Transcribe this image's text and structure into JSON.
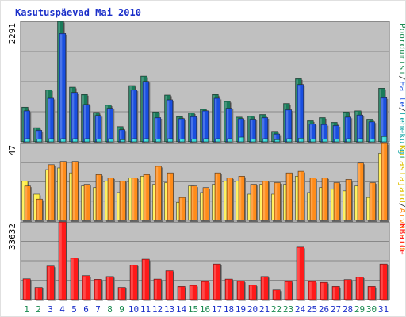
{
  "title": "Kasutuspäevad Mai 2010",
  "colors": {
    "pages": "#1a7b5a",
    "files": "#1a4fe0",
    "visits": "#33d6d6",
    "visitors": "#ffee44",
    "kilobytes_red": "#ff1a1a",
    "sites": "#ff8c1a",
    "panel_bg": "#c0c0c0",
    "grid": "#888888",
    "weekend_label": "#1a8a50",
    "weekday_label": "#1a2fc9"
  },
  "chart_data": [
    {
      "type": "bar",
      "panel": "top",
      "ymax_label": "2291",
      "ylim": [
        0,
        2291
      ],
      "right_labels": [
        {
          "text": "Pöördumisi",
          "color": "#1a8a50"
        },
        {
          "text": "/",
          "color": "#444444"
        },
        {
          "text": "Faile",
          "color": "#1a4fe0"
        },
        {
          "text": "/",
          "color": "#444444"
        },
        {
          "text": "Lehekülgi",
          "color": "#1aa8a8"
        }
      ],
      "categories": [
        "1",
        "2",
        "3",
        "4",
        "5",
        "6",
        "7",
        "8",
        "9",
        "10",
        "11",
        "12",
        "13",
        "14",
        "15",
        "16",
        "17",
        "18",
        "19",
        "20",
        "21",
        "22",
        "23",
        "24",
        "25",
        "26",
        "27",
        "28",
        "29",
        "30",
        "31"
      ],
      "series": [
        {
          "name": "Pöördumisi",
          "values": [
            660,
            270,
            990,
            2291,
            1040,
            900,
            560,
            700,
            290,
            1070,
            1250,
            570,
            890,
            480,
            550,
            620,
            900,
            770,
            470,
            490,
            520,
            200,
            730,
            1200,
            400,
            460,
            370,
            570,
            590,
            430,
            1020
          ]
        },
        {
          "name": "Faile",
          "values": [
            590,
            220,
            830,
            2060,
            940,
            710,
            500,
            640,
            230,
            990,
            1150,
            460,
            800,
            440,
            480,
            590,
            830,
            640,
            440,
            430,
            460,
            150,
            610,
            1090,
            340,
            330,
            310,
            470,
            510,
            380,
            840
          ]
        },
        {
          "name": "Lehekülgi",
          "values": [
            60,
            50,
            60,
            60,
            60,
            60,
            50,
            60,
            40,
            60,
            60,
            50,
            60,
            50,
            50,
            60,
            60,
            60,
            90,
            50,
            60,
            40,
            60,
            70,
            50,
            50,
            50,
            60,
            60,
            50,
            100
          ]
        }
      ]
    },
    {
      "type": "bar",
      "panel": "middle",
      "ymax_label": "47",
      "ylim": [
        0,
        47
      ],
      "right_labels": [
        {
          "text": "Külastajaid",
          "color": "#e0c000"
        },
        {
          "text": "/",
          "color": "#444444"
        },
        {
          "text": "Arvuteid",
          "color": "#ff8c1a"
        }
      ],
      "categories": [
        "1",
        "2",
        "3",
        "4",
        "5",
        "6",
        "7",
        "8",
        "9",
        "10",
        "11",
        "12",
        "13",
        "14",
        "15",
        "16",
        "17",
        "18",
        "19",
        "20",
        "21",
        "22",
        "23",
        "24",
        "25",
        "26",
        "27",
        "28",
        "29",
        "30",
        "31"
      ],
      "series": [
        {
          "name": "Külastajaid",
          "values": [
            24,
            16,
            31,
            32,
            29,
            21,
            20,
            24,
            17,
            26,
            27,
            22,
            23,
            11,
            21,
            17,
            22,
            24,
            24,
            16,
            22,
            16,
            22,
            27,
            17,
            20,
            19,
            18,
            21,
            14,
            41
          ]
        },
        {
          "name": "Arvuteid",
          "values": [
            21,
            13,
            34,
            36,
            36,
            22,
            28,
            26,
            24,
            26,
            28,
            33,
            29,
            14,
            21,
            20,
            29,
            26,
            27,
            22,
            24,
            23,
            29,
            30,
            26,
            26,
            23,
            25,
            35,
            23,
            47
          ]
        }
      ]
    },
    {
      "type": "bar",
      "panel": "bottom",
      "ymax_label": "33632",
      "ylim": [
        0,
        33632
      ],
      "right_labels": [
        {
          "text": "KBaite",
          "color": "#ff1a1a"
        }
      ],
      "categories": [
        "1",
        "2",
        "3",
        "4",
        "5",
        "6",
        "7",
        "8",
        "9",
        "10",
        "11",
        "12",
        "13",
        "14",
        "15",
        "16",
        "17",
        "18",
        "19",
        "20",
        "21",
        "22",
        "23",
        "24",
        "25",
        "26",
        "27",
        "28",
        "29",
        "30",
        "31"
      ],
      "series": [
        {
          "name": "KBaite",
          "values": [
            9000,
            5300,
            14500,
            33632,
            18000,
            10400,
            8800,
            10000,
            5300,
            15000,
            17500,
            8900,
            12500,
            5700,
            6200,
            7900,
            15400,
            8900,
            8000,
            6300,
            10000,
            4200,
            7900,
            22700,
            7900,
            7500,
            5700,
            8700,
            9800,
            5700,
            15400
          ]
        }
      ]
    }
  ],
  "x_labels": [
    {
      "text": "1",
      "weekend": true
    },
    {
      "text": "2",
      "weekend": true
    },
    {
      "text": "3",
      "weekend": false
    },
    {
      "text": "4",
      "weekend": false
    },
    {
      "text": "5",
      "weekend": false
    },
    {
      "text": "6",
      "weekend": false
    },
    {
      "text": "7",
      "weekend": false
    },
    {
      "text": "8",
      "weekend": true
    },
    {
      "text": "9",
      "weekend": true
    },
    {
      "text": "10",
      "weekend": false
    },
    {
      "text": "11",
      "weekend": false
    },
    {
      "text": "12",
      "weekend": false
    },
    {
      "text": "13",
      "weekend": false
    },
    {
      "text": "14",
      "weekend": false
    },
    {
      "text": "15",
      "weekend": true
    },
    {
      "text": "16",
      "weekend": true
    },
    {
      "text": "17",
      "weekend": false
    },
    {
      "text": "18",
      "weekend": false
    },
    {
      "text": "19",
      "weekend": false
    },
    {
      "text": "20",
      "weekend": false
    },
    {
      "text": "21",
      "weekend": false
    },
    {
      "text": "22",
      "weekend": true
    },
    {
      "text": "23",
      "weekend": true
    },
    {
      "text": "24",
      "weekend": false
    },
    {
      "text": "25",
      "weekend": false
    },
    {
      "text": "26",
      "weekend": false
    },
    {
      "text": "27",
      "weekend": false
    },
    {
      "text": "28",
      "weekend": false
    },
    {
      "text": "29",
      "weekend": true
    },
    {
      "text": "30",
      "weekend": true
    },
    {
      "text": "31",
      "weekend": false
    }
  ]
}
